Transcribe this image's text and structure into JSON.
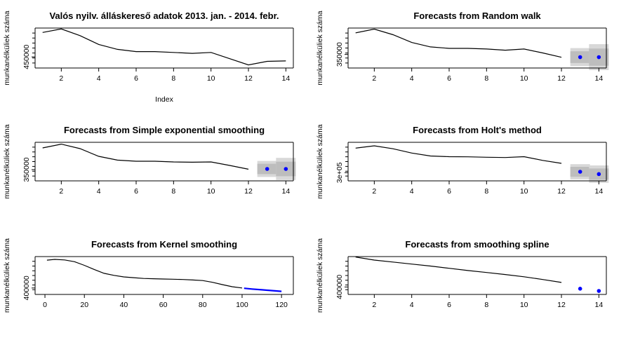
{
  "figure": {
    "background": "#ffffff",
    "line_color": "#000000",
    "forecast_color": "#0000ff",
    "interval_colors": [
      "#d8d8d8",
      "#bdbdbd"
    ]
  },
  "chart_data": [
    {
      "id": "p1",
      "type": "line",
      "title": "Valós nyilv. álláskereső adatok 2013. jan. - 2014. febr.",
      "xlabel": "Index",
      "ylabel": "munkanélküliek száma",
      "xlim": [
        0.6,
        14.4
      ],
      "ylim": [
        425000,
        515000
      ],
      "xticks": [
        2,
        4,
        6,
        8,
        10,
        12,
        14
      ],
      "yticks": [
        450000
      ],
      "ytick_labels": [
        "450000"
      ],
      "series": [
        {
          "x": [
            1,
            2,
            3,
            4,
            5,
            6,
            7,
            8,
            9,
            10,
            11,
            12,
            13,
            14
          ],
          "y": [
            505000,
            513000,
            498000,
            478000,
            467000,
            462000,
            462000,
            460000,
            458000,
            460000,
            446000,
            432000,
            440000,
            441000
          ]
        }
      ]
    },
    {
      "id": "p2",
      "type": "line",
      "title": "Forecasts from Random walk",
      "xlabel": "",
      "ylabel": "munkanélküliek száma",
      "xlim": [
        0.6,
        14.4
      ],
      "ylim": [
        260000,
        525000
      ],
      "xticks": [
        2,
        4,
        6,
        8,
        10,
        12,
        14
      ],
      "yticks": [
        350000
      ],
      "ytick_labels": [
        "350000"
      ],
      "series": [
        {
          "x": [
            1,
            2,
            3,
            4,
            5,
            6,
            7,
            8,
            9,
            10,
            11,
            12
          ],
          "y": [
            493000,
            518000,
            481000,
            429000,
            400000,
            390000,
            390000,
            386000,
            378000,
            386000,
            360000,
            331000
          ]
        }
      ],
      "forecast": {
        "x": [
          13,
          14
        ],
        "y": [
          332000,
          332000
        ],
        "lo80": [
          293000,
          275000
        ],
        "hi80": [
          371000,
          389000
        ],
        "lo95": [
          272000,
          246000
        ],
        "hi95": [
          392000,
          418000
        ]
      }
    },
    {
      "id": "p3",
      "type": "line",
      "title": "Forecasts from Simple exponential smoothing",
      "xlabel": "",
      "ylabel": "munkanélküliek száma",
      "xlim": [
        0.6,
        14.4
      ],
      "ylim": [
        270000,
        545000
      ],
      "xticks": [
        2,
        4,
        6,
        8,
        10,
        12,
        14
      ],
      "yticks": [
        350000
      ],
      "ytick_labels": [
        "350000"
      ],
      "series": [
        {
          "x": [
            1,
            2,
            3,
            4,
            5,
            6,
            7,
            8,
            9,
            10,
            11,
            12
          ],
          "y": [
            505000,
            532000,
            500000,
            445000,
            418000,
            410000,
            410000,
            405000,
            403000,
            405000,
            380000,
            353000
          ]
        }
      ],
      "forecast": {
        "x": [
          13,
          14
        ],
        "y": [
          355000,
          355000
        ],
        "lo80": [
          318000,
          303000
        ],
        "hi80": [
          392000,
          407000
        ],
        "lo95": [
          298000,
          276000
        ],
        "hi95": [
          412000,
          434000
        ]
      }
    },
    {
      "id": "p4",
      "type": "line",
      "title": "Forecasts from Holt's method",
      "xlabel": "",
      "ylabel": "munkanélküliek száma",
      "xlim": [
        0.6,
        14.4
      ],
      "ylim": [
        230000,
        560000
      ],
      "xticks": [
        2,
        4,
        6,
        8,
        10,
        12,
        14
      ],
      "yticks": [
        300000
      ],
      "ytick_labels": [
        "3e+05"
      ],
      "series": [
        {
          "x": [
            1,
            2,
            3,
            4,
            5,
            6,
            7,
            8,
            9,
            10,
            11,
            12
          ],
          "y": [
            510000,
            530000,
            505000,
            468000,
            443000,
            437000,
            436000,
            432000,
            430000,
            437000,
            405000,
            380000
          ]
        }
      ],
      "forecast": {
        "x": [
          13,
          14
        ],
        "y": [
          308000,
          288000
        ],
        "lo80": [
          265000,
          240000
        ],
        "hi80": [
          350000,
          336000
        ],
        "lo95": [
          243000,
          213000
        ],
        "hi95": [
          373000,
          362000
        ]
      }
    },
    {
      "id": "p5",
      "type": "line",
      "title": "Forecasts from Kernel smoothing",
      "xlabel": "",
      "ylabel": "munkanélküliek száma",
      "xlim": [
        -5,
        126
      ],
      "ylim": [
        375000,
        522000
      ],
      "xticks": [
        0,
        20,
        40,
        60,
        80,
        100,
        120
      ],
      "yticks": [
        400000
      ],
      "ytick_labels": [
        "400000"
      ],
      "series": [
        {
          "x": [
            1,
            5,
            10,
            15,
            20,
            25,
            30,
            35,
            40,
            45,
            50,
            55,
            60,
            65,
            70,
            75,
            80,
            85,
            90,
            95,
            100
          ],
          "y": [
            508000,
            511000,
            509000,
            502000,
            488000,
            472000,
            457000,
            449000,
            443000,
            440000,
            437000,
            436000,
            435000,
            434000,
            433000,
            431000,
            429000,
            422000,
            413000,
            405000,
            400000
          ]
        }
      ],
      "forecast": {
        "x": [
          101,
          105,
          110,
          115,
          120
        ],
        "y": [
          399000,
          396000,
          393000,
          390000,
          387000
        ]
      }
    },
    {
      "id": "p6",
      "type": "line",
      "title": "Forecasts from smoothing spline",
      "xlabel": "",
      "ylabel": "munkanélküliek száma",
      "xlim": [
        0.6,
        14.4
      ],
      "ylim": [
        370000,
        522000
      ],
      "xticks": [
        2,
        4,
        6,
        8,
        10,
        12,
        14
      ],
      "yticks": [
        400000
      ],
      "ytick_labels": [
        "400000"
      ],
      "series": [
        {
          "x": [
            1,
            2,
            3,
            4,
            5,
            6,
            7,
            8,
            9,
            10,
            11,
            12
          ],
          "y": [
            520000,
            508000,
            500000,
            492000,
            484000,
            475000,
            466000,
            458000,
            450000,
            441000,
            430000,
            418000
          ]
        }
      ],
      "forecast": {
        "x": [
          13,
          14
        ],
        "y": [
          393000,
          384000
        ]
      }
    }
  ]
}
